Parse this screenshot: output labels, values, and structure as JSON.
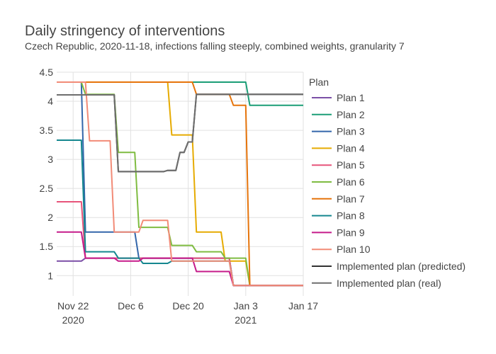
{
  "chart_data": {
    "type": "line",
    "title": "Daily stringency of interventions",
    "subtitle": "Czech Republic, 2020-11-18, infections falling steeply, combined weights, granularity 7",
    "xlabel": "",
    "ylabel": "",
    "ylim": [
      0.65,
      4.5
    ],
    "y_ticks": [
      "1",
      "1.5",
      "2",
      "2.5",
      "3",
      "3.5",
      "4",
      "4.5"
    ],
    "x_range": [
      "2020-11-18",
      "2021-01-17"
    ],
    "x_ticks": [
      {
        "date": "2020-11-22",
        "label": "Nov 22",
        "sub": "2020"
      },
      {
        "date": "2020-12-06",
        "label": "Dec 6",
        "sub": ""
      },
      {
        "date": "2020-12-20",
        "label": "Dec 20",
        "sub": ""
      },
      {
        "date": "2021-01-03",
        "label": "Jan 3",
        "sub": "2021"
      },
      {
        "date": "2021-01-17",
        "label": "Jan 17",
        "sub": ""
      }
    ],
    "grid": true,
    "legend": {
      "title": "Plan",
      "placement": "right"
    },
    "series": [
      {
        "name": "Plan 1",
        "color": "#7b4fa6",
        "x": [
          "2020-11-18",
          "2020-11-24",
          "2020-11-25",
          "2020-12-03",
          "2020-12-04",
          "2020-12-23",
          "2020-12-24",
          "2020-12-30",
          "2020-12-31",
          "2021-01-17"
        ],
        "y": [
          1.25,
          1.25,
          1.3,
          1.3,
          1.3,
          1.3,
          1.3,
          1.3,
          0.83,
          0.83
        ]
      },
      {
        "name": "Plan 2",
        "color": "#1b9e77",
        "x": [
          "2020-11-18",
          "2021-01-03",
          "2021-01-04",
          "2021-01-17"
        ],
        "y": [
          4.33,
          4.33,
          3.93,
          3.93
        ]
      },
      {
        "name": "Plan 3",
        "color": "#3366aa",
        "x": [
          "2020-11-18",
          "2020-11-24",
          "2020-11-25",
          "2020-12-02",
          "2020-12-03",
          "2020-12-07",
          "2020-12-08",
          "2020-12-23",
          "2020-12-24",
          "2020-12-30",
          "2020-12-31",
          "2021-01-17"
        ],
        "y": [
          4.33,
          4.33,
          1.75,
          1.75,
          1.75,
          1.75,
          1.3,
          1.3,
          1.3,
          1.3,
          0.83,
          0.83
        ]
      },
      {
        "name": "Plan 4",
        "color": "#e6ab02",
        "x": [
          "2020-11-18",
          "2020-12-15",
          "2020-12-16",
          "2020-12-21",
          "2020-12-22",
          "2020-12-28",
          "2020-12-29",
          "2021-01-03",
          "2021-01-04",
          "2021-01-17"
        ],
        "y": [
          4.33,
          4.33,
          3.42,
          3.42,
          1.75,
          1.75,
          1.25,
          1.25,
          0.83,
          0.83
        ]
      },
      {
        "name": "Plan 5",
        "color": "#e7547a",
        "x": [
          "2020-11-18",
          "2020-11-24",
          "2020-11-25",
          "2020-12-03",
          "2020-12-04",
          "2020-12-23",
          "2020-12-24",
          "2020-12-30",
          "2020-12-31",
          "2021-01-17"
        ],
        "y": [
          2.27,
          2.27,
          1.3,
          1.3,
          1.3,
          1.3,
          1.3,
          1.3,
          0.83,
          0.83
        ]
      },
      {
        "name": "Plan 6",
        "color": "#7fbc41",
        "x": [
          "2020-11-18",
          "2020-11-24",
          "2020-11-25",
          "2020-12-02",
          "2020-12-03",
          "2020-12-07",
          "2020-12-08",
          "2020-12-15",
          "2020-12-16",
          "2020-12-21",
          "2020-12-22",
          "2020-12-28",
          "2020-12-29",
          "2021-01-03",
          "2021-01-04",
          "2021-01-17"
        ],
        "y": [
          4.33,
          4.33,
          4.12,
          4.12,
          3.12,
          3.12,
          1.83,
          1.83,
          1.52,
          1.52,
          1.41,
          1.41,
          1.3,
          1.3,
          0.83,
          0.83
        ]
      },
      {
        "name": "Plan 7",
        "color": "#e6740b",
        "x": [
          "2020-11-18",
          "2020-12-21",
          "2020-12-22",
          "2020-12-30",
          "2020-12-31",
          "2021-01-03",
          "2021-01-04",
          "2021-01-17"
        ],
        "y": [
          4.33,
          4.33,
          4.12,
          4.12,
          3.93,
          3.93,
          0.83,
          0.83
        ]
      },
      {
        "name": "Plan 8",
        "color": "#15878f",
        "x": [
          "2020-11-18",
          "2020-11-24",
          "2020-11-25",
          "2020-12-02",
          "2020-12-03",
          "2020-12-08",
          "2020-12-09",
          "2020-12-15",
          "2020-12-16",
          "2020-12-23",
          "2020-12-24",
          "2020-12-30",
          "2020-12-31",
          "2021-01-17"
        ],
        "y": [
          3.33,
          3.33,
          1.41,
          1.41,
          1.3,
          1.3,
          1.21,
          1.21,
          1.25,
          1.25,
          1.25,
          1.25,
          0.83,
          0.83
        ]
      },
      {
        "name": "Plan 9",
        "color": "#c51b8a",
        "x": [
          "2020-11-18",
          "2020-11-24",
          "2020-11-25",
          "2020-12-02",
          "2020-12-03",
          "2020-12-08",
          "2020-12-09",
          "2020-12-21",
          "2020-12-22",
          "2020-12-30",
          "2020-12-31",
          "2021-01-17"
        ],
        "y": [
          1.75,
          1.75,
          1.3,
          1.3,
          1.25,
          1.25,
          1.3,
          1.3,
          1.07,
          1.07,
          0.83,
          0.83
        ]
      },
      {
        "name": "Plan 10",
        "color": "#f28b77",
        "x": [
          "2020-11-18",
          "2020-11-25",
          "2020-11-26",
          "2020-12-01",
          "2020-12-02",
          "2020-12-08",
          "2020-12-09",
          "2020-12-15",
          "2020-12-16",
          "2020-12-30",
          "2020-12-31",
          "2021-01-17"
        ],
        "y": [
          4.33,
          4.33,
          3.32,
          3.32,
          1.75,
          1.75,
          1.95,
          1.95,
          1.25,
          1.25,
          0.83,
          0.83
        ]
      },
      {
        "name": "Implemented plan (predicted)",
        "color": "#333333",
        "x": [
          "2020-11-18",
          "2020-12-02",
          "2020-12-03",
          "2020-12-14",
          "2020-12-15",
          "2020-12-17",
          "2020-12-18",
          "2020-12-19",
          "2020-12-20",
          "2020-12-21",
          "2020-12-22",
          "2021-01-17"
        ],
        "y": [
          4.11,
          4.11,
          2.79,
          2.79,
          2.81,
          2.81,
          3.12,
          3.12,
          3.3,
          3.3,
          4.12,
          4.12
        ]
      },
      {
        "name": "Implemented plan (real)",
        "color": "#6e6e6e",
        "x": [
          "2020-11-18",
          "2020-12-02",
          "2020-12-03",
          "2020-12-14",
          "2020-12-15",
          "2020-12-17",
          "2020-12-18",
          "2020-12-19",
          "2020-12-20",
          "2020-12-21",
          "2020-12-22",
          "2021-01-17"
        ],
        "y": [
          4.11,
          4.11,
          2.79,
          2.79,
          2.81,
          2.81,
          3.12,
          3.12,
          3.3,
          3.3,
          4.12,
          4.12
        ]
      }
    ]
  }
}
